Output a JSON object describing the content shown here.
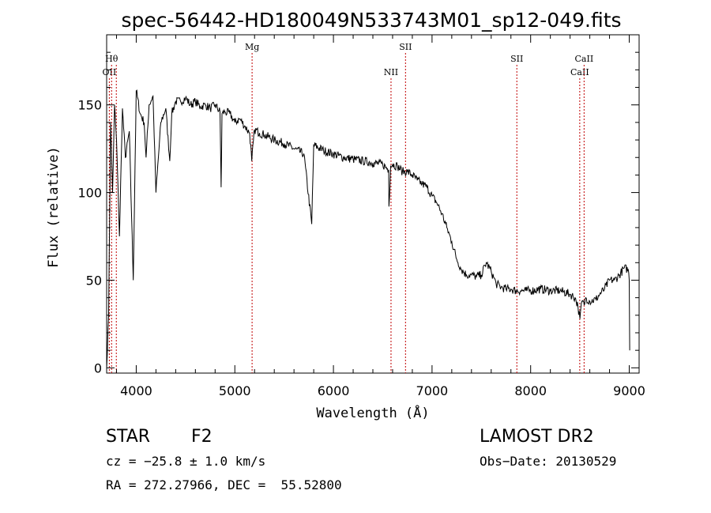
{
  "chart_data": {
    "type": "line",
    "title": "spec-56442-HD180049N533743M01_sp12-049.fits",
    "xlabel": "Wavelength (Å)",
    "ylabel": "Flux (relative)",
    "xlim": [
      3700,
      9100
    ],
    "ylim": [
      -3,
      190
    ],
    "x_ticks": [
      "4000",
      "5000",
      "6000",
      "7000",
      "8000",
      "9000"
    ],
    "y_ticks": [
      "0",
      "50",
      "100",
      "150"
    ],
    "grid": false,
    "series": [
      {
        "x": [
          3700,
          3720,
          3740,
          3760,
          3780,
          3800,
          3830,
          3860,
          3890,
          3930,
          3970,
          4000,
          4040,
          4080,
          4100,
          4130,
          4170,
          4200,
          4250,
          4300,
          4340,
          4360,
          4400,
          4450,
          4500,
          4550,
          4600,
          4650,
          4700,
          4750,
          4800,
          4850,
          4861,
          4870,
          4900,
          4950,
          5000,
          5050,
          5100,
          5150,
          5172,
          5200,
          5250,
          5300,
          5400,
          5500,
          5600,
          5700,
          5780,
          5800,
          5900,
          6000,
          6100,
          6200,
          6300,
          6400,
          6500,
          6560,
          6563,
          6580,
          6600,
          6650,
          6700,
          6750,
          6800,
          6850,
          6900,
          6950,
          7000,
          7050,
          7100,
          7150,
          7200,
          7250,
          7300,
          7350,
          7400,
          7450,
          7500,
          7550,
          7600,
          7650,
          7700,
          7750,
          7800,
          7850,
          7900,
          7950,
          8000,
          8100,
          8200,
          8300,
          8400,
          8450,
          8480,
          8500,
          8520,
          8542,
          8560,
          8600,
          8662,
          8700,
          8750,
          8800,
          8850,
          8900,
          8950,
          8990,
          9000,
          9005
        ],
        "y": [
          0,
          30,
          140,
          100,
          150,
          130,
          75,
          148,
          120,
          135,
          50,
          158,
          145,
          140,
          120,
          150,
          155,
          100,
          140,
          148,
          118,
          145,
          152,
          152,
          154,
          150,
          152,
          149,
          150,
          148,
          150,
          146,
          103,
          145,
          146,
          145,
          140,
          142,
          138,
          134,
          118,
          136,
          134,
          133,
          130,
          128,
          125,
          122,
          82,
          127,
          124,
          122,
          120,
          119,
          118,
          117,
          116,
          113,
          92,
          115,
          116,
          115,
          112,
          112,
          110,
          107,
          105,
          103,
          98,
          94,
          88,
          80,
          72,
          62,
          56,
          53,
          53,
          52,
          53,
          60,
          55,
          48,
          46,
          45,
          45,
          44,
          44,
          44,
          44,
          45,
          44,
          44,
          42,
          40,
          35,
          28,
          38,
          36,
          40,
          38,
          39,
          42,
          45,
          50,
          50,
          53,
          57,
          56,
          50,
          10
        ]
      }
    ],
    "line_markers": [
      {
        "label": "OII",
        "wavelength": 3727,
        "row": 3
      },
      {
        "label": "Hθ",
        "wavelength": 3750,
        "row": 2
      },
      {
        "label": "",
        "wavelength": 3798,
        "row": 2
      },
      {
        "label": "Mg",
        "wavelength": 5175,
        "row": 1
      },
      {
        "label": "NII",
        "wavelength": 6584,
        "row": 3
      },
      {
        "label": "SII",
        "wavelength": 6731,
        "row": 1
      },
      {
        "label": "SII",
        "wavelength": 7860,
        "row": 2
      },
      {
        "label": "CaII",
        "wavelength": 8498,
        "row": 3
      },
      {
        "label": "CaII",
        "wavelength": 8542,
        "row": 2
      }
    ],
    "marker_color": "#c00000"
  },
  "info": {
    "object_type": "STAR",
    "subclass": "F2",
    "survey": "LAMOST DR2",
    "cz": "cz = −25.8 ± 1.0 km/s",
    "obs_date": "Obs−Date: 20130529",
    "coords": "RA = 272.27966, DEC =  55.52800"
  }
}
